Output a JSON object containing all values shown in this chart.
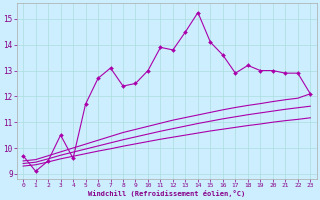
{
  "xlabel": "Windchill (Refroidissement éolien,°C)",
  "bg_color": "#cceeff",
  "grid_color": "#aadddd",
  "line_color": "#aa00aa",
  "spine_color": "#aaaaaa",
  "tick_color": "#880088",
  "xlim": [
    -0.5,
    23.5
  ],
  "ylim": [
    8.8,
    15.6
  ],
  "yticks": [
    9,
    10,
    11,
    12,
    13,
    14,
    15
  ],
  "xticks": [
    0,
    1,
    2,
    3,
    4,
    5,
    6,
    7,
    8,
    9,
    10,
    11,
    12,
    13,
    14,
    15,
    16,
    17,
    18,
    19,
    20,
    21,
    22,
    23
  ],
  "main_line_x": [
    0,
    1,
    2,
    3,
    4,
    5,
    6,
    7,
    8,
    9,
    10,
    11,
    12,
    13,
    14,
    15,
    16,
    17,
    18,
    19,
    20,
    21,
    22,
    23
  ],
  "main_line_y": [
    9.7,
    9.1,
    9.5,
    10.5,
    9.6,
    11.7,
    12.7,
    13.1,
    12.4,
    12.5,
    13.0,
    13.9,
    13.8,
    14.5,
    15.25,
    14.1,
    13.6,
    12.9,
    13.2,
    13.0,
    13.0,
    12.9,
    12.9,
    12.1
  ],
  "curve1_x": [
    0,
    1,
    2,
    3,
    4,
    5,
    6,
    7,
    8,
    9,
    10,
    11,
    12,
    13,
    14,
    15,
    16,
    17,
    18,
    19,
    20,
    21,
    22,
    23
  ],
  "curve1_y": [
    9.5,
    9.55,
    9.7,
    9.85,
    10.0,
    10.15,
    10.3,
    10.45,
    10.6,
    10.72,
    10.84,
    10.96,
    11.08,
    11.18,
    11.28,
    11.38,
    11.48,
    11.57,
    11.65,
    11.72,
    11.8,
    11.87,
    11.93,
    12.1
  ],
  "curve2_x": [
    0,
    1,
    2,
    3,
    4,
    5,
    6,
    7,
    8,
    9,
    10,
    11,
    12,
    13,
    14,
    15,
    16,
    17,
    18,
    19,
    20,
    21,
    22,
    23
  ],
  "curve2_y": [
    9.4,
    9.45,
    9.58,
    9.72,
    9.84,
    9.96,
    10.08,
    10.2,
    10.32,
    10.43,
    10.54,
    10.65,
    10.75,
    10.85,
    10.95,
    11.04,
    11.13,
    11.21,
    11.29,
    11.36,
    11.43,
    11.5,
    11.56,
    11.62
  ],
  "curve3_x": [
    0,
    1,
    2,
    3,
    4,
    5,
    6,
    7,
    8,
    9,
    10,
    11,
    12,
    13,
    14,
    15,
    16,
    17,
    18,
    19,
    20,
    21,
    22,
    23
  ],
  "curve3_y": [
    9.3,
    9.35,
    9.46,
    9.58,
    9.68,
    9.78,
    9.88,
    9.97,
    10.07,
    10.16,
    10.25,
    10.34,
    10.42,
    10.5,
    10.58,
    10.66,
    10.73,
    10.8,
    10.87,
    10.93,
    11.0,
    11.06,
    11.11,
    11.17
  ]
}
